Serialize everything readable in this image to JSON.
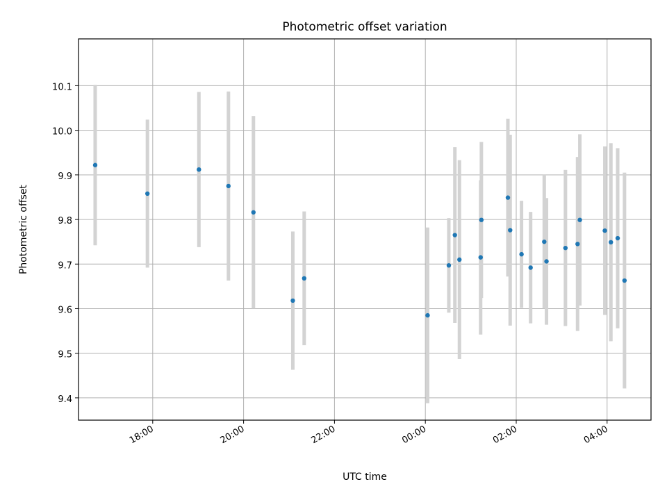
{
  "chart_data": {
    "type": "scatter",
    "title": "Photometric offset variation",
    "xlabel": "UTC time",
    "ylabel": "Photometric offset",
    "x_tick_labels": [
      "18:00",
      "20:00",
      "22:00",
      "00:00",
      "02:00",
      "04:00"
    ],
    "y_tick_labels": [
      "9.4",
      "9.5",
      "9.6",
      "9.7",
      "9.8",
      "9.9",
      "10.0",
      "10.1"
    ],
    "x_axis": "time (UTC)",
    "xlim": [
      "16:22",
      "04:58"
    ],
    "ylim": [
      9.35,
      10.205
    ],
    "grid": true,
    "colors": {
      "marker": "#1f77b4",
      "errorbar": "#d3d3d3",
      "grid": "#b0b0b0"
    },
    "points": [
      {
        "x": "16:44",
        "y": 9.922,
        "ylo": 9.742,
        "yhi": 10.102
      },
      {
        "x": "17:53",
        "y": 9.858,
        "ylo": 9.692,
        "yhi": 10.024
      },
      {
        "x": "19:01",
        "y": 9.912,
        "ylo": 9.738,
        "yhi": 10.086
      },
      {
        "x": "19:40",
        "y": 9.875,
        "ylo": 9.663,
        "yhi": 10.087
      },
      {
        "x": "20:13",
        "y": 9.816,
        "ylo": 9.6,
        "yhi": 10.032
      },
      {
        "x": "21:05",
        "y": 9.618,
        "ylo": 9.463,
        "yhi": 9.773
      },
      {
        "x": "21:20",
        "y": 9.668,
        "ylo": 9.518,
        "yhi": 9.818
      },
      {
        "x": "00:03",
        "y": 9.585,
        "ylo": 9.388,
        "yhi": 9.782
      },
      {
        "x": "00:31",
        "y": 9.697,
        "ylo": 9.591,
        "yhi": 9.803
      },
      {
        "x": "00:39",
        "y": 9.765,
        "ylo": 9.568,
        "yhi": 9.962
      },
      {
        "x": "00:45",
        "y": 9.71,
        "ylo": 9.487,
        "yhi": 9.933
      },
      {
        "x": "01:13",
        "y": 9.715,
        "ylo": 9.542,
        "yhi": 9.888
      },
      {
        "x": "01:14",
        "y": 9.799,
        "ylo": 9.624,
        "yhi": 9.974
      },
      {
        "x": "01:49",
        "y": 9.849,
        "ylo": 9.672,
        "yhi": 10.026
      },
      {
        "x": "01:52",
        "y": 9.776,
        "ylo": 9.562,
        "yhi": 9.99
      },
      {
        "x": "02:07",
        "y": 9.722,
        "ylo": 9.602,
        "yhi": 9.842
      },
      {
        "x": "02:19",
        "y": 9.692,
        "ylo": 9.567,
        "yhi": 9.817
      },
      {
        "x": "02:37",
        "y": 9.75,
        "ylo": 9.6,
        "yhi": 9.9
      },
      {
        "x": "02:40",
        "y": 9.706,
        "ylo": 9.564,
        "yhi": 9.848
      },
      {
        "x": "03:05",
        "y": 9.736,
        "ylo": 9.561,
        "yhi": 9.911
      },
      {
        "x": "03:21",
        "y": 9.745,
        "ylo": 9.55,
        "yhi": 9.94
      },
      {
        "x": "03:24",
        "y": 9.799,
        "ylo": 9.607,
        "yhi": 9.991
      },
      {
        "x": "03:57",
        "y": 9.775,
        "ylo": 9.586,
        "yhi": 9.964
      },
      {
        "x": "04:05",
        "y": 9.749,
        "ylo": 9.527,
        "yhi": 9.971
      },
      {
        "x": "04:14",
        "y": 9.758,
        "ylo": 9.556,
        "yhi": 9.96
      },
      {
        "x": "04:23",
        "y": 9.663,
        "ylo": 9.421,
        "yhi": 9.905
      }
    ]
  }
}
